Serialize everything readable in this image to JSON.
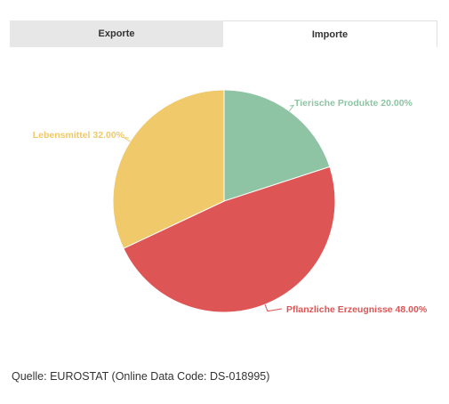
{
  "tabs": [
    {
      "label": "Exporte",
      "active": false
    },
    {
      "label": "Importe",
      "active": true
    }
  ],
  "source": "Quelle: EUROSTAT (Online Data Code: DS-018995)",
  "chart_data": {
    "type": "pie",
    "slices": [
      {
        "label": "Tierische Produkte 20.00%",
        "value": 20.0,
        "color": "#8ec4a4"
      },
      {
        "label": "Pflanzliche Erzeugnisse 48.00%",
        "value": 48.0,
        "color": "#dd5555"
      },
      {
        "label": "Lebensmittel 32.00%",
        "value": 32.0,
        "color": "#efc96a"
      }
    ],
    "start_angle_deg": 0,
    "direction": "clockwise"
  }
}
